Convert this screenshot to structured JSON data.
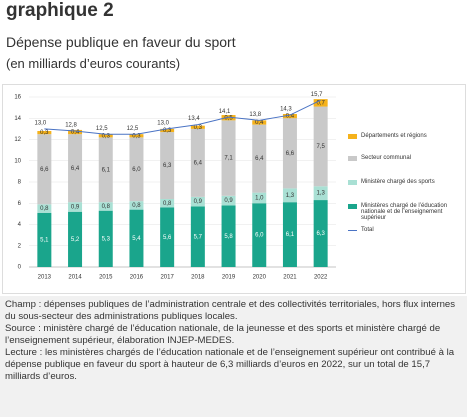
{
  "header": {
    "title": "graphique 2",
    "subtitle": "Dépense publique en faveur du sport",
    "unit": "(en milliards d’euros courants)"
  },
  "chart_data": {
    "type": "bar",
    "stacked": true,
    "grid": true,
    "legend": "right",
    "categories": [
      "2013",
      "2014",
      "2015",
      "2016",
      "2017",
      "2018",
      "2019",
      "2020",
      "2021",
      "2022"
    ],
    "ylim": [
      0,
      16
    ],
    "yticks": [
      0,
      2,
      4,
      6,
      8,
      10,
      12,
      14,
      16
    ],
    "series": [
      {
        "name": "Départements et régions",
        "color": "#f5b21b",
        "values": [
          0.3,
          0.4,
          0.3,
          0.3,
          0.3,
          0.3,
          0.5,
          0.4,
          0.4,
          0.7
        ],
        "value_labels": [
          "0,3",
          "0,4",
          "0,3",
          "0,3",
          "0,3",
          "0,3",
          "0,5",
          "0,4",
          "0,4",
          "0,7"
        ]
      },
      {
        "name": "Secteur communal",
        "color": "#c9c9c9",
        "values": [
          6.6,
          6.4,
          6.1,
          6.0,
          6.3,
          6.4,
          7.1,
          6.4,
          6.6,
          7.5
        ],
        "value_labels": [
          "6,6",
          "6,4",
          "6,1",
          "6,0",
          "6,3",
          "6,4",
          "7,1",
          "6,4",
          "6,6",
          "7,5"
        ]
      },
      {
        "name": "Ministère chargé des sports",
        "color": "#a9e0d4",
        "values": [
          0.8,
          0.9,
          0.8,
          0.8,
          0.8,
          0.9,
          0.9,
          1.0,
          1.3,
          1.3
        ],
        "value_labels": [
          "0,8",
          "0,9",
          "0,8",
          "0,8",
          "0,8",
          "0,9",
          "0,9",
          "1,0",
          "1,3",
          "1,3"
        ]
      },
      {
        "name": "Ministères chargé de l’éducation nationale et de l’enseignement supérieur",
        "color": "#1aa58c",
        "values": [
          5.1,
          5.2,
          5.3,
          5.4,
          5.6,
          5.7,
          5.8,
          6.0,
          6.1,
          6.3
        ],
        "value_labels": [
          "5,1",
          "5,2",
          "5,3",
          "5,4",
          "5,6",
          "5,7",
          "5,8",
          "6,0",
          "6,1",
          "6,3"
        ]
      },
      {
        "name": "Total",
        "type": "line",
        "color": "#4a73c4",
        "values": [
          13.0,
          12.8,
          12.5,
          12.5,
          13.0,
          13.4,
          14.1,
          13.8,
          14.3,
          15.7
        ],
        "value_labels": [
          "13,0",
          "12,8",
          "12,5",
          "12,5",
          "13,0",
          "13,4",
          "14,1",
          "13,8",
          "14,3",
          "15,7"
        ]
      }
    ]
  },
  "notes": [
    "Champ : dépenses publiques de l’administration centrale et des collectivités territoriales, hors flux internes du sous-secteur des administrations publiques locales.",
    "Source : ministère chargé de l’éducation nationale, de la jeunesse et des sports et ministère chargé de l’enseignement supérieur, élaboration INJEP-MEDES.",
    "Lecture : les ministères chargés de l’éducation nationale et de l’enseignement supérieur ont contribué à la dépense publique en faveur du sport à hauteur de 6,3 milliards d’euros en 2022, sur un total de 15,7 milliards d’euros."
  ]
}
